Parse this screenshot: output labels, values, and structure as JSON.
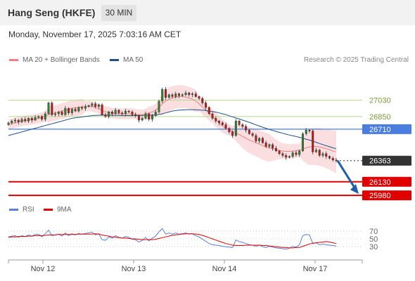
{
  "header": {
    "title": "Hang Seng (HKFE)",
    "timeframe": "30 MIN",
    "datetime": "Monday, November 17, 2025 7:03:16 AM CET"
  },
  "legend": {
    "main": [
      {
        "label": "MA 20 + Bollinger Bands",
        "color": "#f08080"
      },
      {
        "label": "MA 50",
        "color": "#1f4e8c"
      }
    ],
    "rsi": [
      {
        "label": "RSI",
        "color": "#5b7fd6"
      },
      {
        "label": "9MA",
        "color": "#e00000"
      }
    ]
  },
  "credit": "Research © 2025 Trading Central",
  "colors": {
    "candle_up": "#2e7d32",
    "candle_down": "#b71c1c",
    "resistance_line": "#b5d98a",
    "pivot_line": "#4a7de0",
    "support_line": "#e00000",
    "band_fill": "#fadadd",
    "arrow": "#1f5fa8"
  },
  "chart_data": [
    {
      "type": "candlestick",
      "title": "",
      "x_labels": [
        "Nov 12",
        "Nov 13",
        "Nov 14",
        "Nov 17"
      ],
      "ylim": [
        25950,
        27360
      ],
      "levels": [
        {
          "value": 27030,
          "label": "27030",
          "kind": "resistance"
        },
        {
          "value": 26850,
          "label": "26850",
          "kind": "resistance"
        },
        {
          "value": 26710,
          "label": "26710",
          "kind": "pivot"
        },
        {
          "value": 26363,
          "label": "26363",
          "kind": "last_price"
        },
        {
          "value": 26130,
          "label": "26130",
          "kind": "support"
        },
        {
          "value": 25980,
          "label": "25980",
          "kind": "support"
        }
      ],
      "close": [
        26780,
        26800,
        26810,
        26790,
        26820,
        26800,
        26830,
        26810,
        26840,
        26850,
        26820,
        26880,
        27000,
        26870,
        26880,
        26900,
        26870,
        26940,
        26890,
        26930,
        26910,
        26950,
        26940,
        26960,
        26970,
        26990,
        26960,
        26980,
        26870,
        26850,
        26900,
        26880,
        26920,
        26890,
        26880,
        26910,
        26900,
        26870,
        26860,
        26810,
        26830,
        26880,
        26820,
        26860,
        26900,
        27020,
        27150,
        27060,
        27090,
        27070,
        27100,
        27080,
        27090,
        27110,
        27090,
        27100,
        27070,
        27050,
        27000,
        26950,
        26880,
        26830,
        26800,
        26780,
        26760,
        26720,
        26680,
        26640,
        26800,
        26760,
        26740,
        26700,
        26660,
        26640,
        26580,
        26610,
        26560,
        26520,
        26540,
        26500,
        26470,
        26440,
        26420,
        26400,
        26410,
        26450,
        26430,
        26470,
        26660,
        26700,
        26690,
        26460,
        26480,
        26420,
        26440,
        26410,
        26390,
        26370,
        26363
      ],
      "ma20": [
        26760,
        26770,
        26780,
        26790,
        26800,
        26805,
        26810,
        26815,
        26820,
        26830,
        26840,
        26855,
        26870,
        26880,
        26890,
        26900,
        26910,
        26920,
        26930,
        26940,
        26945,
        26950,
        26955,
        26960,
        26965,
        26960,
        26950,
        26935,
        26915,
        26905,
        26895,
        26890,
        26885,
        26880,
        26880,
        26880,
        26880,
        26880,
        26875,
        26870,
        26870,
        26880,
        26890,
        26900,
        26920,
        26950,
        26990,
        27020,
        27040,
        27055,
        27065,
        27070,
        27070,
        27065,
        27055,
        27040,
        27020,
        26990,
        26955,
        26920,
        26885,
        26850,
        26815,
        26780,
        26745,
        26720,
        26700,
        26685,
        26670,
        26650,
        26630,
        26610,
        26590,
        26575,
        26560,
        26545,
        26530,
        26515,
        26505,
        26495,
        26485,
        26475,
        26470,
        26465,
        26465,
        26468,
        26472,
        26478,
        26490,
        26505,
        26515,
        26520,
        26520,
        26515,
        26505,
        26495,
        26485,
        26470,
        26460
      ],
      "ma50": [
        26640,
        26650,
        26660,
        26670,
        26680,
        26690,
        26700,
        26710,
        26720,
        26730,
        26740,
        26750,
        26760,
        26770,
        26780,
        26790,
        26800,
        26810,
        26820,
        26830,
        26835,
        26840,
        26845,
        26850,
        26855,
        26860,
        26862,
        26864,
        26865,
        26865,
        26865,
        26864,
        26863,
        26862,
        26861,
        26860,
        26860,
        26860,
        26860,
        26861,
        26862,
        26863,
        26865,
        26866,
        26868,
        26872,
        26880,
        26890,
        26900,
        26910,
        26915,
        26920,
        26922,
        26924,
        26925,
        26925,
        26924,
        26922,
        26919,
        26915,
        26910,
        26905,
        26898,
        26890,
        26880,
        26870,
        26858,
        26846,
        26834,
        26822,
        26810,
        26798,
        26786,
        26772,
        26758,
        26745,
        26732,
        26720,
        26708,
        26696,
        26685,
        26675,
        26665,
        26655,
        26646,
        26638,
        26630,
        26620,
        26610,
        26600,
        26590,
        26578,
        26565,
        26552,
        26540,
        26528,
        26516,
        26505,
        26495
      ],
      "rsi": [
        55,
        57,
        58,
        54,
        58,
        56,
        60,
        57,
        61,
        62,
        55,
        63,
        72,
        58,
        60,
        62,
        57,
        65,
        58,
        63,
        60,
        64,
        62,
        64,
        65,
        67,
        60,
        63,
        48,
        46,
        55,
        52,
        58,
        54,
        52,
        56,
        54,
        49,
        48,
        42,
        46,
        54,
        45,
        52,
        57,
        68,
        76,
        62,
        65,
        62,
        65,
        62,
        63,
        65,
        62,
        63,
        58,
        55,
        49,
        44,
        38,
        35,
        34,
        33,
        31,
        30,
        29,
        28,
        47,
        43,
        41,
        38,
        35,
        34,
        31,
        34,
        30,
        28,
        31,
        29,
        27,
        26,
        25,
        24,
        26,
        31,
        29,
        35,
        58,
        61,
        60,
        38,
        40,
        35,
        37,
        35,
        34,
        33,
        32
      ],
      "rsi_ma9": [
        54,
        55,
        55,
        56,
        56,
        56,
        57,
        57,
        58,
        58,
        58,
        59,
        60,
        60,
        60,
        61,
        61,
        61,
        61,
        61,
        61,
        62,
        62,
        62,
        62,
        62,
        63,
        62,
        60,
        58,
        57,
        55,
        54,
        53,
        52,
        52,
        51,
        50,
        50,
        49,
        48,
        48,
        48,
        48,
        49,
        51,
        53,
        55,
        57,
        59,
        60,
        61,
        62,
        63,
        63,
        63,
        62,
        61,
        59,
        56,
        53,
        50,
        47,
        44,
        41,
        38,
        36,
        34,
        33,
        33,
        33,
        34,
        34,
        34,
        34,
        34,
        33,
        33,
        32,
        31,
        30,
        29,
        28,
        28,
        27,
        27,
        28,
        28,
        31,
        34,
        37,
        39,
        40,
        41,
        42,
        43,
        42,
        40,
        38
      ],
      "rsi_levels": [
        70,
        50,
        30
      ],
      "rsi_ylim": [
        0,
        100
      ]
    }
  ]
}
